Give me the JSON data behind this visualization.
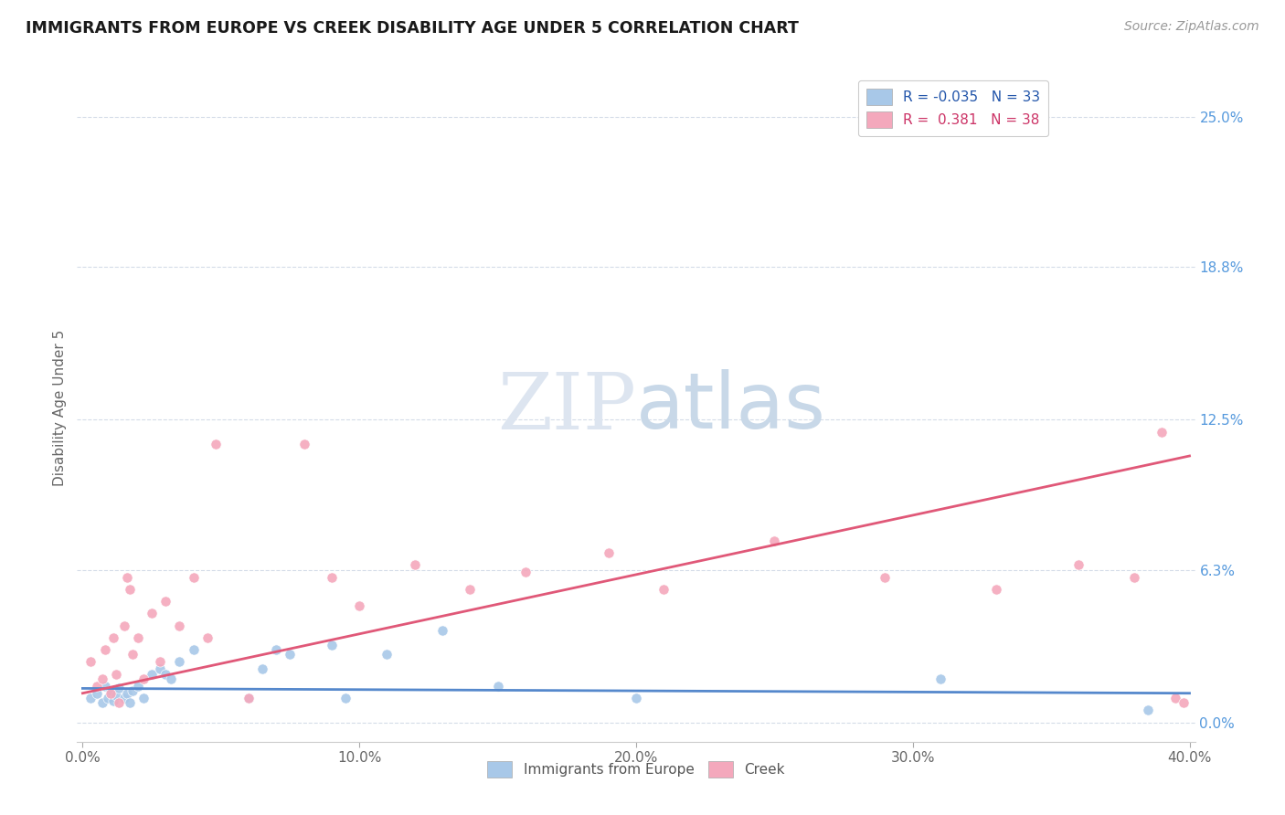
{
  "title": "IMMIGRANTS FROM EUROPE VS CREEK DISABILITY AGE UNDER 5 CORRELATION CHART",
  "source": "Source: ZipAtlas.com",
  "ylabel": "Disability Age Under 5",
  "xlabel_ticks": [
    "0.0%",
    "10.0%",
    "20.0%",
    "30.0%",
    "40.0%"
  ],
  "xlabel_vals": [
    0.0,
    0.1,
    0.2,
    0.3,
    0.4
  ],
  "right_ytick_labels": [
    "25.0%",
    "18.8%",
    "12.5%",
    "6.3%",
    "0.0%"
  ],
  "right_ytick_vals": [
    0.25,
    0.188,
    0.125,
    0.063,
    0.0
  ],
  "xlim": [
    -0.002,
    0.402
  ],
  "ylim": [
    -0.008,
    0.268
  ],
  "legend_entries": [
    {
      "label": "R = -0.035   N = 33",
      "color": "#a8c8e8"
    },
    {
      "label": "R =  0.381   N = 38",
      "color": "#f4a8bc"
    }
  ],
  "legend_bottom_labels": [
    "Immigrants from Europe",
    "Creek"
  ],
  "blue_scatter_x": [
    0.003,
    0.005,
    0.007,
    0.008,
    0.009,
    0.01,
    0.011,
    0.012,
    0.013,
    0.015,
    0.016,
    0.017,
    0.018,
    0.02,
    0.022,
    0.025,
    0.028,
    0.03,
    0.032,
    0.035,
    0.04,
    0.06,
    0.065,
    0.07,
    0.075,
    0.09,
    0.095,
    0.11,
    0.13,
    0.15,
    0.2,
    0.31,
    0.385
  ],
  "blue_scatter_y": [
    0.01,
    0.012,
    0.008,
    0.015,
    0.01,
    0.013,
    0.009,
    0.011,
    0.014,
    0.01,
    0.012,
    0.008,
    0.013,
    0.015,
    0.01,
    0.02,
    0.022,
    0.02,
    0.018,
    0.025,
    0.03,
    0.01,
    0.022,
    0.03,
    0.028,
    0.032,
    0.01,
    0.028,
    0.038,
    0.015,
    0.01,
    0.018,
    0.005
  ],
  "pink_scatter_x": [
    0.003,
    0.005,
    0.007,
    0.008,
    0.01,
    0.011,
    0.012,
    0.013,
    0.015,
    0.016,
    0.017,
    0.018,
    0.02,
    0.022,
    0.025,
    0.028,
    0.03,
    0.035,
    0.04,
    0.045,
    0.048,
    0.06,
    0.08,
    0.09,
    0.1,
    0.12,
    0.14,
    0.16,
    0.19,
    0.21,
    0.25,
    0.29,
    0.33,
    0.36,
    0.38,
    0.39,
    0.395,
    0.398
  ],
  "pink_scatter_y": [
    0.025,
    0.015,
    0.018,
    0.03,
    0.012,
    0.035,
    0.02,
    0.008,
    0.04,
    0.06,
    0.055,
    0.028,
    0.035,
    0.018,
    0.045,
    0.025,
    0.05,
    0.04,
    0.06,
    0.035,
    0.115,
    0.01,
    0.115,
    0.06,
    0.048,
    0.065,
    0.055,
    0.062,
    0.07,
    0.055,
    0.075,
    0.06,
    0.055,
    0.065,
    0.06,
    0.12,
    0.01,
    0.008
  ],
  "blue_line_x": [
    0.0,
    0.4
  ],
  "blue_line_y": [
    0.014,
    0.012
  ],
  "pink_line_x": [
    0.0,
    0.4
  ],
  "pink_line_y": [
    0.012,
    0.11
  ],
  "blue_color": "#a8c8e8",
  "pink_color": "#f4a8bc",
  "blue_line_color": "#5588cc",
  "pink_line_color": "#e05878",
  "bg_color": "#ffffff",
  "grid_color": "#d4dce8",
  "title_color": "#1a1a1a",
  "source_color": "#999999",
  "tick_color": "#666666",
  "right_tick_color": "#5599dd"
}
